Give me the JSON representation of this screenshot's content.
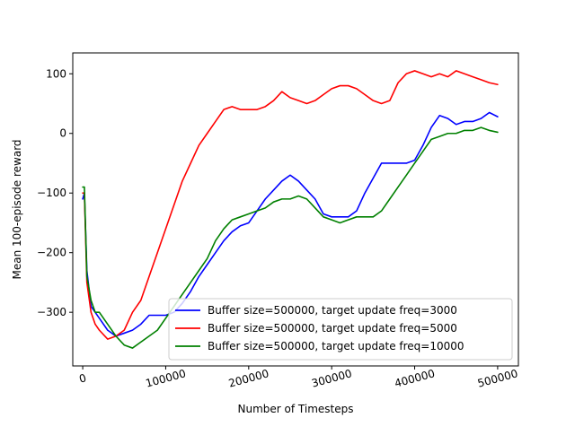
{
  "chart_data": {
    "type": "line",
    "xlabel": "Number of Timesteps",
    "ylabel": "Mean 100-episode reward",
    "xlim": [
      -12000,
      525000
    ],
    "ylim": [
      -390,
      135
    ],
    "xticks": [
      0,
      100000,
      200000,
      300000,
      400000,
      500000
    ],
    "xtick_labels": [
      "0",
      "100000",
      "200000",
      "300000",
      "400000",
      "500000"
    ],
    "yticks": [
      -300,
      -200,
      -100,
      0,
      100
    ],
    "ytick_labels": [
      "−300",
      "−200",
      "−100",
      "0",
      "100"
    ],
    "xtick_rotation": 15,
    "grid": false,
    "legend": "lower-right",
    "series": [
      {
        "name": "Buffer size=500000, target update freq=3000",
        "color": "#0000ff",
        "x": [
          0,
          2000,
          5000,
          10000,
          15000,
          20000,
          30000,
          40000,
          50000,
          60000,
          70000,
          80000,
          90000,
          100000,
          110000,
          120000,
          130000,
          140000,
          150000,
          160000,
          170000,
          180000,
          190000,
          200000,
          210000,
          220000,
          230000,
          240000,
          250000,
          260000,
          270000,
          280000,
          290000,
          300000,
          310000,
          320000,
          330000,
          340000,
          350000,
          360000,
          370000,
          380000,
          390000,
          400000,
          410000,
          420000,
          430000,
          440000,
          450000,
          460000,
          470000,
          480000,
          490000,
          500000
        ],
        "y": [
          -110,
          -100,
          -230,
          -290,
          -300,
          -310,
          -330,
          -340,
          -335,
          -330,
          -320,
          -305,
          -305,
          -305,
          -300,
          -285,
          -265,
          -240,
          -220,
          -200,
          -180,
          -165,
          -155,
          -150,
          -130,
          -110,
          -95,
          -80,
          -70,
          -80,
          -95,
          -110,
          -135,
          -140,
          -140,
          -140,
          -130,
          -100,
          -75,
          -50,
          -50,
          -50,
          -50,
          -45,
          -20,
          10,
          30,
          25,
          15,
          20,
          20,
          25,
          35,
          28
        ]
      },
      {
        "name": "Buffer size=500000, target update freq=5000",
        "color": "#ff0000",
        "x": [
          0,
          2000,
          5000,
          10000,
          15000,
          20000,
          30000,
          40000,
          50000,
          60000,
          70000,
          80000,
          90000,
          100000,
          110000,
          120000,
          130000,
          140000,
          150000,
          160000,
          170000,
          180000,
          190000,
          200000,
          210000,
          220000,
          230000,
          240000,
          250000,
          260000,
          270000,
          280000,
          290000,
          300000,
          310000,
          320000,
          330000,
          340000,
          350000,
          360000,
          370000,
          380000,
          390000,
          400000,
          410000,
          420000,
          430000,
          440000,
          450000,
          460000,
          470000,
          480000,
          490000,
          500000
        ],
        "y": [
          -100,
          -100,
          -250,
          -300,
          -320,
          -330,
          -345,
          -340,
          -330,
          -300,
          -280,
          -240,
          -200,
          -160,
          -120,
          -80,
          -50,
          -20,
          0,
          20,
          40,
          45,
          40,
          40,
          40,
          45,
          55,
          70,
          60,
          55,
          50,
          55,
          65,
          75,
          80,
          80,
          75,
          65,
          55,
          50,
          55,
          85,
          100,
          105,
          100,
          95,
          100,
          95,
          105,
          100,
          95,
          90,
          85,
          82
        ]
      },
      {
        "name": "Buffer size=500000, target update freq=10000",
        "color": "#008000",
        "x": [
          0,
          2000,
          5000,
          10000,
          15000,
          20000,
          30000,
          40000,
          50000,
          60000,
          70000,
          80000,
          90000,
          100000,
          110000,
          120000,
          130000,
          140000,
          150000,
          160000,
          170000,
          180000,
          190000,
          200000,
          210000,
          220000,
          230000,
          240000,
          250000,
          260000,
          270000,
          280000,
          290000,
          300000,
          310000,
          320000,
          330000,
          340000,
          350000,
          360000,
          370000,
          380000,
          390000,
          400000,
          410000,
          420000,
          430000,
          440000,
          450000,
          460000,
          470000,
          480000,
          490000,
          500000
        ],
        "y": [
          -90,
          -90,
          -240,
          -280,
          -300,
          -300,
          -320,
          -340,
          -355,
          -360,
          -350,
          -340,
          -330,
          -310,
          -290,
          -270,
          -250,
          -230,
          -210,
          -180,
          -160,
          -145,
          -140,
          -135,
          -130,
          -125,
          -115,
          -110,
          -110,
          -105,
          -110,
          -125,
          -140,
          -145,
          -150,
          -145,
          -140,
          -140,
          -140,
          -130,
          -110,
          -90,
          -70,
          -50,
          -30,
          -10,
          -5,
          0,
          0,
          5,
          5,
          10,
          5,
          2
        ]
      }
    ]
  }
}
